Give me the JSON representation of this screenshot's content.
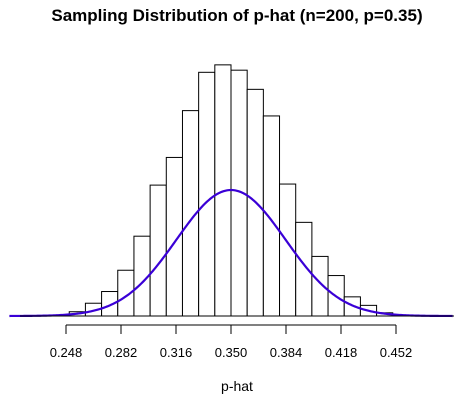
{
  "chart_data": {
    "type": "bar",
    "title": "Sampling Distribution of p-hat (n=200, p=0.35)",
    "xlabel": "p-hat",
    "ylabel": "",
    "xlim": [
      0.2,
      0.5
    ],
    "ylim": [
      0,
      26.5
    ],
    "bin_width": 0.01,
    "bins": [
      {
        "x0": 0.25,
        "x1": 0.26,
        "density": 0.4
      },
      {
        "x0": 0.26,
        "x1": 0.27,
        "density": 1.2
      },
      {
        "x0": 0.27,
        "x1": 0.28,
        "density": 2.3
      },
      {
        "x0": 0.28,
        "x1": 0.29,
        "density": 4.3
      },
      {
        "x0": 0.29,
        "x1": 0.3,
        "density": 7.5
      },
      {
        "x0": 0.3,
        "x1": 0.31,
        "density": 12.3
      },
      {
        "x0": 0.31,
        "x1": 0.32,
        "density": 14.9
      },
      {
        "x0": 0.32,
        "x1": 0.33,
        "density": 19.3
      },
      {
        "x0": 0.33,
        "x1": 0.34,
        "density": 22.9
      },
      {
        "x0": 0.34,
        "x1": 0.35,
        "density": 23.6
      },
      {
        "x0": 0.35,
        "x1": 0.36,
        "density": 23.1
      },
      {
        "x0": 0.36,
        "x1": 0.37,
        "density": 21.3
      },
      {
        "x0": 0.37,
        "x1": 0.38,
        "density": 18.8
      },
      {
        "x0": 0.38,
        "x1": 0.39,
        "density": 12.4
      },
      {
        "x0": 0.39,
        "x1": 0.4,
        "density": 8.8
      },
      {
        "x0": 0.4,
        "x1": 0.41,
        "density": 5.6
      },
      {
        "x0": 0.41,
        "x1": 0.42,
        "density": 3.8
      },
      {
        "x0": 0.42,
        "x1": 0.43,
        "density": 1.8
      },
      {
        "x0": 0.43,
        "x1": 0.44,
        "density": 1.0
      },
      {
        "x0": 0.44,
        "x1": 0.45,
        "density": 0.3
      }
    ],
    "curve": {
      "type": "normal-density",
      "mean": 0.35,
      "sd": 0.0337,
      "color": "#3a00d6"
    },
    "x_ticks": [
      0.248,
      0.282,
      0.316,
      0.35,
      0.384,
      0.418,
      0.452
    ],
    "x_tick_labels": [
      "0.248",
      "0.282",
      "0.316",
      "0.350",
      "0.384",
      "0.418",
      "0.452"
    ],
    "grid": false,
    "legend": "none"
  }
}
